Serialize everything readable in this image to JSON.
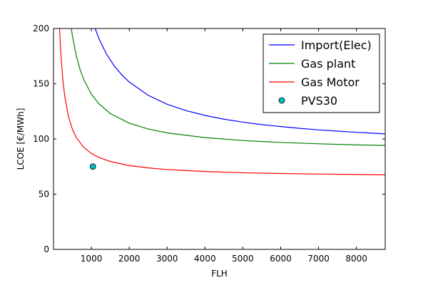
{
  "chart_data": {
    "type": "line",
    "xlabel": "FLH",
    "ylabel": "LCOE [€/MWh]",
    "xlim": [
      0,
      8760
    ],
    "ylim": [
      0,
      200
    ],
    "xticks": [
      1000,
      2000,
      3000,
      4000,
      5000,
      6000,
      7000,
      8000
    ],
    "yticks": [
      0,
      50,
      100,
      150,
      200
    ],
    "grid": false,
    "legend_position": "top-right",
    "series": [
      {
        "name": "Import(Elec)",
        "kind": "line",
        "color": "#0000ff",
        "x": [
          1100,
          1200,
          1400,
          1600,
          1800,
          2000,
          2500,
          3000,
          3500,
          4000,
          4500,
          5000,
          5500,
          6000,
          6500,
          7000,
          7500,
          8000,
          8760
        ],
        "y": [
          200,
          190.8,
          176.8,
          166.3,
          158.2,
          151.6,
          139.5,
          131.4,
          125.7,
          121.3,
          117.9,
          115.2,
          113,
          111.2,
          109.6,
          108.2,
          107.1,
          106,
          104.6
        ]
      },
      {
        "name": "Gas plant",
        "kind": "line",
        "color": "#008000",
        "x": [
          470,
          500,
          600,
          700,
          800,
          1000,
          1200,
          1500,
          2000,
          2500,
          3000,
          4000,
          5000,
          6000,
          7000,
          8000,
          8760
        ],
        "y": [
          200,
          193.3,
          175.6,
          163.1,
          153.6,
          140.5,
          131.8,
          123,
          114.3,
          109,
          105.5,
          101.2,
          98.6,
          96.8,
          95.6,
          94.6,
          94.1
        ]
      },
      {
        "name": "Gas Motor",
        "kind": "line",
        "color": "#ff0000",
        "x": [
          160,
          180,
          200,
          250,
          300,
          400,
          500,
          600,
          800,
          1000,
          1200,
          1500,
          2000,
          2500,
          3000,
          4000,
          5000,
          6000,
          7000,
          8000,
          8760
        ],
        "y": [
          200,
          186.3,
          174.2,
          152.3,
          137.8,
          119.6,
          108.7,
          101.4,
          92.3,
          86.9,
          83.2,
          79.6,
          75.9,
          73.8,
          72.3,
          70.5,
          69.4,
          68.7,
          68.2,
          67.8,
          67.5
        ]
      },
      {
        "name": "PVS30",
        "kind": "scatter",
        "color": "#00bfbf",
        "x": [
          1040
        ],
        "y": [
          75
        ]
      }
    ]
  }
}
